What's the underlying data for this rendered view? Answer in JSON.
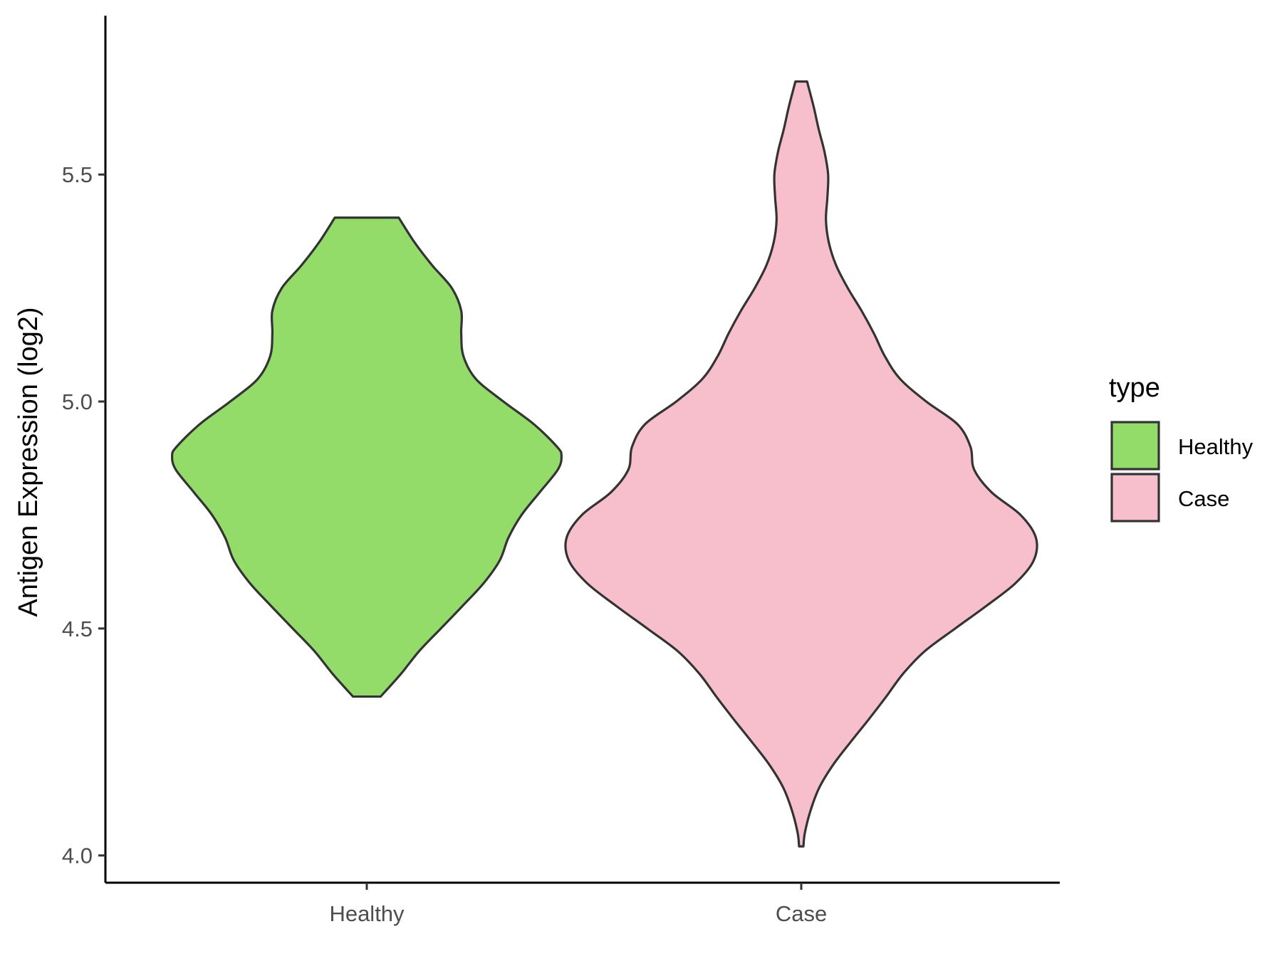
{
  "chart_data": {
    "type": "violin",
    "title": "",
    "xlabel": "",
    "ylabel": "Antigen Expression (log2)",
    "ylim": [
      3.94,
      5.85
    ],
    "yticks": [
      4.0,
      4.5,
      5.0,
      5.5
    ],
    "ytick_labels": [
      "4.0",
      "4.5",
      "5.0",
      "5.5"
    ],
    "categories": [
      "Healthy",
      "Case"
    ],
    "grid": false,
    "legend": {
      "title": "type",
      "placement": "right",
      "entries": [
        "Healthy",
        "Case"
      ]
    },
    "series": [
      {
        "name": "Healthy",
        "color": "#93dc6a",
        "min": 4.35,
        "max": 5.405,
        "density": [
          [
            4.35,
            0.19
          ],
          [
            4.4,
            0.47
          ],
          [
            4.45,
            0.72
          ],
          [
            4.5,
            1.02
          ],
          [
            4.55,
            1.32
          ],
          [
            4.6,
            1.61
          ],
          [
            4.65,
            1.83
          ],
          [
            4.7,
            1.95
          ],
          [
            4.75,
            2.13
          ],
          [
            4.8,
            2.38
          ],
          [
            4.85,
            2.63
          ],
          [
            4.88,
            2.68
          ],
          [
            4.9,
            2.62
          ],
          [
            4.95,
            2.3
          ],
          [
            5.0,
            1.88
          ],
          [
            5.05,
            1.5
          ],
          [
            5.1,
            1.33
          ],
          [
            5.15,
            1.3
          ],
          [
            5.2,
            1.3
          ],
          [
            5.25,
            1.17
          ],
          [
            5.3,
            0.9
          ],
          [
            5.35,
            0.66
          ],
          [
            5.405,
            0.44
          ]
        ]
      },
      {
        "name": "Case",
        "color": "#f7bfcb",
        "min": 4.02,
        "max": 5.705,
        "density": [
          [
            4.02,
            0.03
          ],
          [
            4.05,
            0.05
          ],
          [
            4.1,
            0.13
          ],
          [
            4.15,
            0.25
          ],
          [
            4.2,
            0.44
          ],
          [
            4.25,
            0.68
          ],
          [
            4.3,
            0.93
          ],
          [
            4.35,
            1.17
          ],
          [
            4.4,
            1.4
          ],
          [
            4.45,
            1.7
          ],
          [
            4.5,
            2.12
          ],
          [
            4.55,
            2.55
          ],
          [
            4.6,
            2.95
          ],
          [
            4.65,
            3.2
          ],
          [
            4.7,
            3.23
          ],
          [
            4.75,
            3.02
          ],
          [
            4.8,
            2.62
          ],
          [
            4.85,
            2.38
          ],
          [
            4.9,
            2.33
          ],
          [
            4.95,
            2.15
          ],
          [
            5.0,
            1.72
          ],
          [
            5.05,
            1.36
          ],
          [
            5.1,
            1.15
          ],
          [
            5.15,
            1.0
          ],
          [
            5.2,
            0.83
          ],
          [
            5.25,
            0.64
          ],
          [
            5.3,
            0.48
          ],
          [
            5.35,
            0.38
          ],
          [
            5.4,
            0.34
          ],
          [
            5.45,
            0.36
          ],
          [
            5.5,
            0.37
          ],
          [
            5.55,
            0.32
          ],
          [
            5.6,
            0.24
          ],
          [
            5.65,
            0.17
          ],
          [
            5.705,
            0.08
          ]
        ]
      }
    ]
  }
}
